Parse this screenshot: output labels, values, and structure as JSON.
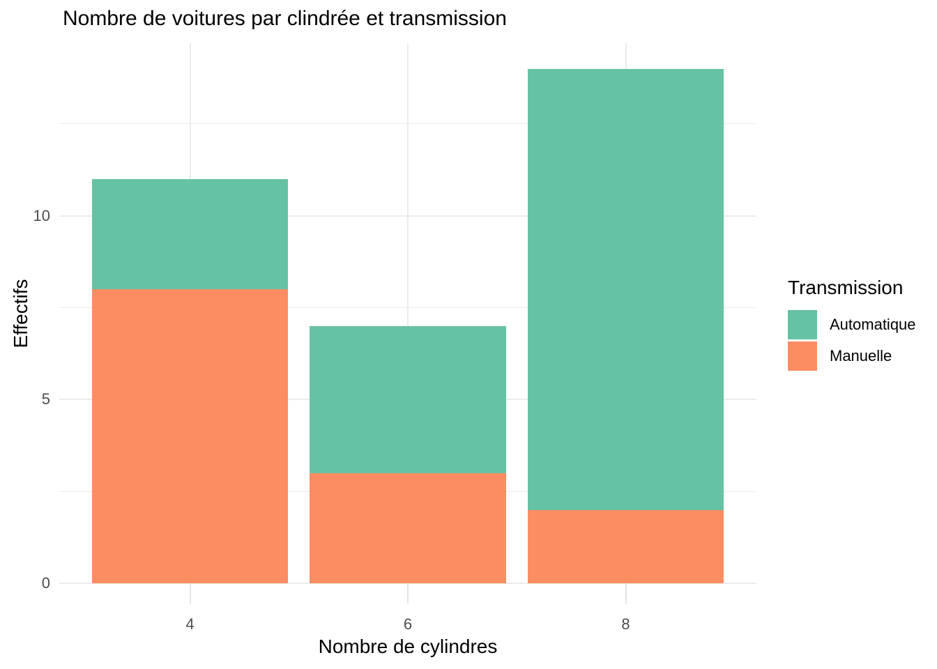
{
  "chart_data": {
    "type": "bar",
    "stacked": true,
    "title": "Nombre de voitures par clindrée et transmission",
    "xlabel": "Nombre de cylindres",
    "ylabel": "Effectifs",
    "categories": [
      "4",
      "6",
      "8"
    ],
    "series": [
      {
        "name": "Manuelle",
        "color": "#FC8D62",
        "values": [
          8,
          3,
          2
        ]
      },
      {
        "name": "Automatique",
        "color": "#66C2A5",
        "values": [
          3,
          4,
          12
        ]
      }
    ],
    "stack_totals": [
      11,
      7,
      14
    ],
    "ylim": [
      0,
      14.7
    ],
    "y_major_ticks": [
      0,
      5,
      10
    ],
    "y_minor_ticks": [
      2.5,
      7.5,
      12.5
    ],
    "grid": "major+minor",
    "legend": {
      "title": "Transmission",
      "position": "right",
      "items": [
        {
          "label": "Automatique",
          "color": "#66C2A5"
        },
        {
          "label": "Manuelle",
          "color": "#FC8D62"
        }
      ]
    },
    "theme": {
      "background": "#ffffff",
      "gridline_color": "#EBEBEB",
      "tick_label_color": "#4D4D4D",
      "title_color": "#000000"
    }
  }
}
